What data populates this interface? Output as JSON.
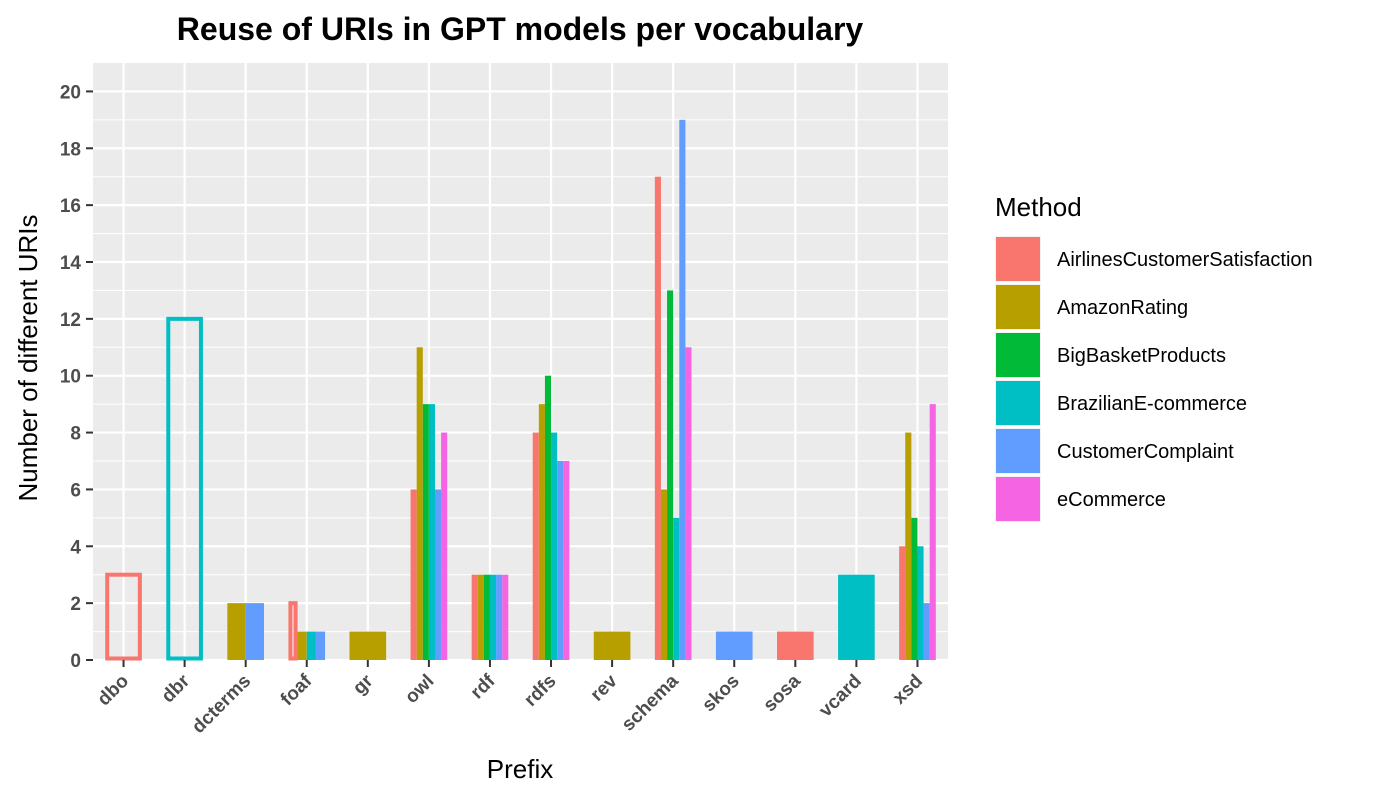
{
  "chart_data": {
    "type": "bar",
    "title": "Reuse of URIs in GPT models per vocabulary",
    "xlabel": "Prefix",
    "ylabel": "Number of different URIs",
    "ylim": [
      0,
      21
    ],
    "yticks": [
      0,
      2,
      4,
      6,
      8,
      10,
      12,
      14,
      16,
      18,
      20
    ],
    "grid": true,
    "legend": {
      "title": "Method",
      "position": "right"
    },
    "categories": [
      "dbo",
      "dbr",
      "dcterms",
      "foaf",
      "gr",
      "owl",
      "rdf",
      "rdfs",
      "rev",
      "schema",
      "skos",
      "sosa",
      "vcard",
      "xsd"
    ],
    "series": [
      {
        "name": "AirlinesCustomerSatisfaction",
        "color": "#F8766D",
        "values": [
          3,
          null,
          null,
          2,
          null,
          6,
          3,
          8,
          null,
          17,
          null,
          1,
          null,
          4
        ]
      },
      {
        "name": "AmazonRating",
        "color": "#B79F00",
        "values": [
          null,
          null,
          2,
          1,
          1,
          11,
          3,
          9,
          1,
          6,
          null,
          null,
          null,
          8
        ]
      },
      {
        "name": "BigBasketProducts",
        "color": "#00BA38",
        "values": [
          null,
          null,
          null,
          null,
          null,
          9,
          3,
          10,
          null,
          13,
          null,
          null,
          null,
          5
        ]
      },
      {
        "name": "BrazilianE-commerce",
        "color": "#00BFC4",
        "values": [
          null,
          12,
          null,
          1,
          null,
          9,
          3,
          8,
          null,
          5,
          null,
          null,
          3,
          4
        ]
      },
      {
        "name": "CustomerComplaint",
        "color": "#619CFF",
        "values": [
          null,
          null,
          2,
          1,
          null,
          6,
          3,
          7,
          null,
          19,
          1,
          null,
          null,
          2
        ]
      },
      {
        "name": "eCommerce",
        "color": "#F564E3",
        "values": [
          null,
          null,
          null,
          null,
          null,
          8,
          3,
          7,
          null,
          11,
          null,
          null,
          null,
          9
        ]
      }
    ],
    "outlined_bars": [
      {
        "category": "dbo",
        "series": "AirlinesCustomerSatisfaction"
      },
      {
        "category": "dbr",
        "series": "BrazilianE-commerce"
      },
      {
        "category": "foaf",
        "series": "AirlinesCustomerSatisfaction"
      }
    ]
  }
}
